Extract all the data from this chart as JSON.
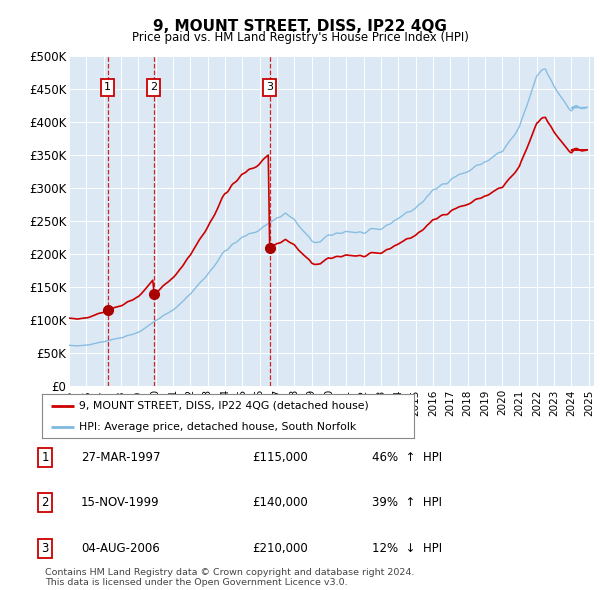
{
  "title": "9, MOUNT STREET, DISS, IP22 4QG",
  "subtitle": "Price paid vs. HM Land Registry's House Price Index (HPI)",
  "ylabel_ticks": [
    "£0",
    "£50K",
    "£100K",
    "£150K",
    "£200K",
    "£250K",
    "£300K",
    "£350K",
    "£400K",
    "£450K",
    "£500K"
  ],
  "ytick_values": [
    0,
    50000,
    100000,
    150000,
    200000,
    250000,
    300000,
    350000,
    400000,
    450000,
    500000
  ],
  "ylim": [
    0,
    500000
  ],
  "xlim_start": 1995.0,
  "xlim_end": 2025.3,
  "hpi_color": "#7fb9e0",
  "price_color": "#cc0000",
  "sale_marker_color": "#aa0000",
  "vline_color": "#cc0000",
  "background_color": "#dce9f5",
  "sales": [
    {
      "label": 1,
      "date_float": 1997.23,
      "price": 115000,
      "pct": "46%",
      "dir": "↑",
      "date_str": "27-MAR-1997"
    },
    {
      "label": 2,
      "date_float": 1999.88,
      "price": 140000,
      "pct": "39%",
      "dir": "↑",
      "date_str": "15-NOV-1999"
    },
    {
      "label": 3,
      "date_float": 2006.59,
      "price": 210000,
      "pct": "12%",
      "dir": "↓",
      "date_str": "04-AUG-2006"
    }
  ],
  "legend_line1": "9, MOUNT STREET, DISS, IP22 4QG (detached house)",
  "legend_line2": "HPI: Average price, detached house, South Norfolk",
  "footer1": "Contains HM Land Registry data © Crown copyright and database right 2024.",
  "footer2": "This data is licensed under the Open Government Licence v3.0."
}
